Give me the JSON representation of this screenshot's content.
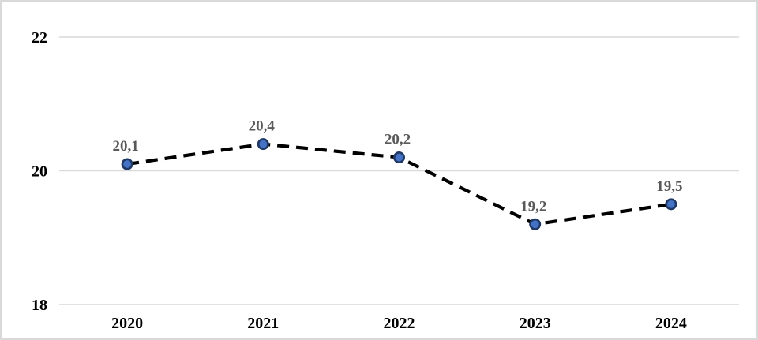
{
  "chart_data": {
    "type": "line",
    "title": "",
    "xlabel": "",
    "ylabel": "",
    "categories": [
      "2020",
      "2021",
      "2022",
      "2023",
      "2024"
    ],
    "series": [
      {
        "name": "value",
        "values": [
          20.1,
          20.4,
          20.2,
          19.2,
          19.5
        ]
      }
    ],
    "point_labels": [
      "20,1",
      "20,4",
      "20,2",
      "19,2",
      "19,5"
    ],
    "yticks": [
      {
        "value": 22,
        "label": "22"
      },
      {
        "value": 20,
        "label": "20"
      },
      {
        "value": 18,
        "label": "18"
      }
    ],
    "ylim": [
      18,
      22
    ],
    "grid": "horizontal",
    "legend": "none",
    "line_style": "dashed",
    "colors": {
      "line": "#000000",
      "marker_fill": "#4472c4",
      "marker_border": "#1f3864",
      "gridline": "#d9d9d9",
      "data_label": "#595959",
      "axis_label": "#000000",
      "frame_border": "#d9d9d9",
      "background": "#ffffff"
    }
  }
}
